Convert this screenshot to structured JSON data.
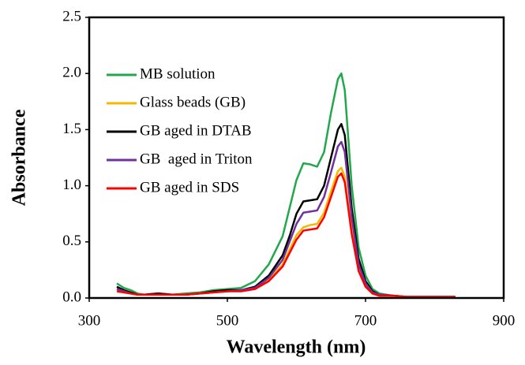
{
  "chart_data": {
    "type": "line",
    "x_label": "Wavelength (nm)",
    "y_label": "Absorbance",
    "x": [
      340,
      350,
      360,
      370,
      380,
      400,
      420,
      440,
      460,
      480,
      500,
      520,
      540,
      560,
      580,
      590,
      600,
      610,
      620,
      630,
      640,
      650,
      660,
      665,
      670,
      680,
      690,
      700,
      710,
      720,
      740,
      760,
      780,
      800,
      830
    ],
    "series": [
      {
        "name": "MB solution",
        "color": "#21a84b",
        "values": [
          0.13,
          0.09,
          0.07,
          0.04,
          0.03,
          0.04,
          0.03,
          0.04,
          0.05,
          0.07,
          0.08,
          0.09,
          0.15,
          0.3,
          0.55,
          0.8,
          1.05,
          1.2,
          1.19,
          1.17,
          1.3,
          1.65,
          1.95,
          2.0,
          1.85,
          1.0,
          0.45,
          0.2,
          0.08,
          0.04,
          0.02,
          0.01,
          0.01,
          0.01,
          0.01
        ]
      },
      {
        "name": "Glass beads (GB)",
        "color": "#f5b800",
        "values": [
          0.07,
          0.05,
          0.04,
          0.03,
          0.03,
          0.03,
          0.03,
          0.03,
          0.04,
          0.05,
          0.06,
          0.07,
          0.08,
          0.16,
          0.3,
          0.43,
          0.56,
          0.63,
          0.65,
          0.66,
          0.76,
          0.95,
          1.13,
          1.16,
          1.08,
          0.6,
          0.26,
          0.11,
          0.05,
          0.02,
          0.02,
          0.01,
          0.01,
          0.01,
          0.01
        ]
      },
      {
        "name": "GB aged in DTAB",
        "color": "#000000",
        "values": [
          0.1,
          0.07,
          0.05,
          0.03,
          0.03,
          0.04,
          0.03,
          0.03,
          0.04,
          0.06,
          0.07,
          0.07,
          0.1,
          0.2,
          0.38,
          0.55,
          0.75,
          0.86,
          0.87,
          0.88,
          1.0,
          1.25,
          1.5,
          1.55,
          1.45,
          0.8,
          0.35,
          0.15,
          0.06,
          0.03,
          0.02,
          0.01,
          0.01,
          0.01,
          0.01
        ]
      },
      {
        "name": "GB  aged in Triton",
        "color": "#7030a0",
        "values": [
          0.08,
          0.06,
          0.04,
          0.03,
          0.03,
          0.03,
          0.03,
          0.03,
          0.04,
          0.05,
          0.06,
          0.07,
          0.09,
          0.18,
          0.34,
          0.5,
          0.66,
          0.76,
          0.77,
          0.78,
          0.9,
          1.12,
          1.35,
          1.39,
          1.3,
          0.72,
          0.3,
          0.13,
          0.05,
          0.03,
          0.02,
          0.01,
          0.01,
          0.01,
          0.01
        ]
      },
      {
        "name": "GB aged in SDS",
        "color": "#ff0000",
        "values": [
          0.06,
          0.05,
          0.04,
          0.03,
          0.03,
          0.03,
          0.03,
          0.03,
          0.04,
          0.05,
          0.06,
          0.06,
          0.08,
          0.15,
          0.28,
          0.4,
          0.52,
          0.6,
          0.61,
          0.62,
          0.72,
          0.9,
          1.08,
          1.11,
          1.03,
          0.57,
          0.24,
          0.1,
          0.04,
          0.02,
          0.02,
          0.01,
          0.01,
          0.01,
          0.01
        ]
      }
    ],
    "xlim": [
      300,
      900
    ],
    "xticks": [
      300,
      500,
      700,
      900
    ],
    "ylim": [
      0,
      2.5
    ],
    "yticks": [
      {
        "value": 0,
        "label": "0.0"
      },
      {
        "value": 0.5,
        "label": "0.5"
      },
      {
        "value": 1,
        "label": "1.0"
      },
      {
        "value": 1.5,
        "label": "1.5"
      },
      {
        "value": 2,
        "label": "2.0"
      },
      {
        "value": 2.5,
        "label": "2.5"
      }
    ],
    "legend": "top-left"
  }
}
